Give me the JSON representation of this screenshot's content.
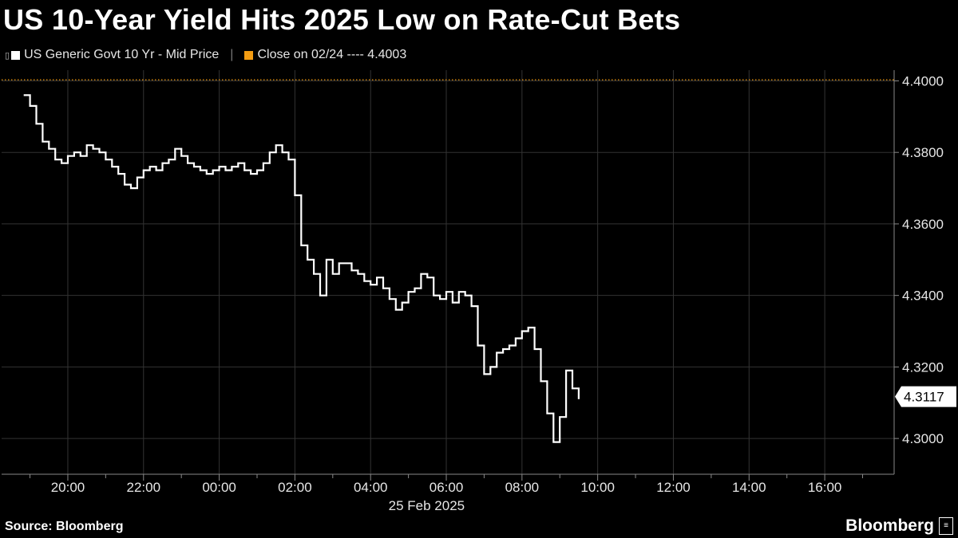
{
  "title": "US 10-Year Yield Hits 2025 Low on Rate-Cut Bets",
  "legend": {
    "series_label": "US Generic Govt 10 Yr - Mid Price",
    "close_label": "Close on 02/24 ---- 4.4003",
    "series_color": "#ffffff",
    "close_color": "#f39c12"
  },
  "source": "Source: Bloomberg",
  "brand": "Bloomberg",
  "chart_data": {
    "type": "line",
    "title": "US 10-Year Yield Hits 2025 Low on Rate-Cut Bets",
    "xlabel": "25 Feb 2025",
    "ylabel": "",
    "x_ticks": [
      "20:00",
      "22:00",
      "00:00",
      "02:00",
      "04:00",
      "06:00",
      "08:00",
      "10:00",
      "12:00",
      "14:00",
      "16:00"
    ],
    "y_ticks": [
      "4.3000",
      "4.3200",
      "4.3400",
      "4.3600",
      "4.3800",
      "4.4000"
    ],
    "ylim": [
      4.29,
      4.403
    ],
    "xlim": [
      "18:15",
      "17:50"
    ],
    "last_value_label": "4.3117",
    "reference_line": {
      "label": "Close on 02/24",
      "value": 4.4003
    },
    "grid": true,
    "legend_position": "top-left",
    "series": [
      {
        "name": "US Generic Govt 10 Yr - Mid Price",
        "x": [
          "18:50",
          "19:00",
          "19:10",
          "19:20",
          "19:30",
          "19:40",
          "19:50",
          "20:00",
          "20:10",
          "20:20",
          "20:30",
          "20:40",
          "20:50",
          "21:00",
          "21:10",
          "21:20",
          "21:30",
          "21:40",
          "21:50",
          "22:00",
          "22:10",
          "22:20",
          "22:30",
          "22:40",
          "22:50",
          "23:00",
          "23:10",
          "23:20",
          "23:30",
          "23:40",
          "23:50",
          "00:00",
          "00:10",
          "00:20",
          "00:30",
          "00:40",
          "00:50",
          "01:00",
          "01:10",
          "01:20",
          "01:30",
          "01:40",
          "01:50",
          "02:00",
          "02:10",
          "02:20",
          "02:30",
          "02:40",
          "02:50",
          "03:00",
          "03:10",
          "03:20",
          "03:30",
          "03:40",
          "03:50",
          "04:00",
          "04:10",
          "04:20",
          "04:30",
          "04:40",
          "04:50",
          "05:00",
          "05:10",
          "05:20",
          "05:30",
          "05:40",
          "05:50",
          "06:00",
          "06:10",
          "06:20",
          "06:30",
          "06:40",
          "06:50",
          "07:00",
          "07:10",
          "07:20",
          "07:30",
          "07:40",
          "07:50",
          "08:00",
          "08:10",
          "08:20",
          "08:30",
          "08:40",
          "08:50",
          "09:00",
          "09:10",
          "09:20",
          "09:30"
        ],
        "values": [
          4.396,
          4.393,
          4.388,
          4.383,
          4.381,
          4.378,
          4.377,
          4.379,
          4.38,
          4.379,
          4.382,
          4.381,
          4.38,
          4.378,
          4.376,
          4.374,
          4.371,
          4.37,
          4.373,
          4.375,
          4.376,
          4.375,
          4.377,
          4.378,
          4.381,
          4.379,
          4.377,
          4.376,
          4.375,
          4.374,
          4.375,
          4.376,
          4.375,
          4.376,
          4.377,
          4.375,
          4.374,
          4.375,
          4.377,
          4.38,
          4.382,
          4.38,
          4.378,
          4.368,
          4.354,
          4.35,
          4.346,
          4.34,
          4.35,
          4.346,
          4.349,
          4.349,
          4.347,
          4.346,
          4.344,
          4.343,
          4.345,
          4.342,
          4.339,
          4.336,
          4.338,
          4.341,
          4.342,
          4.346,
          4.345,
          4.34,
          4.339,
          4.341,
          4.338,
          4.341,
          4.34,
          4.337,
          4.326,
          4.318,
          4.32,
          4.324,
          4.325,
          4.326,
          4.328,
          4.33,
          4.331,
          4.325,
          4.316,
          4.307,
          4.299,
          4.306,
          4.319,
          4.314,
          4.311
        ]
      }
    ]
  }
}
